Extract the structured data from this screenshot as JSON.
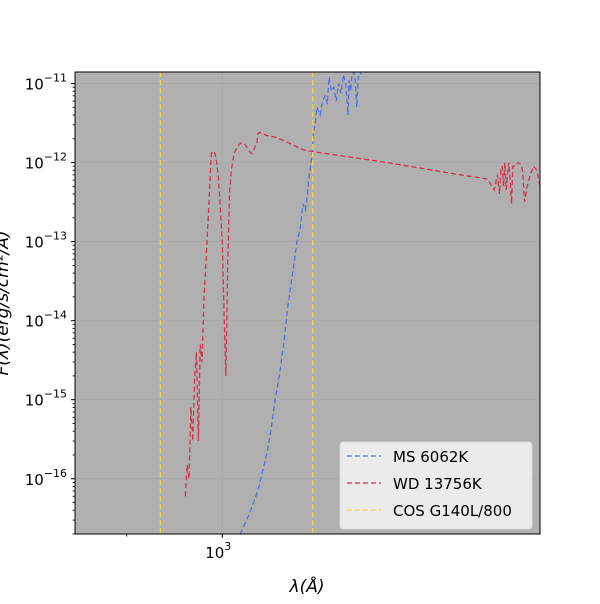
{
  "chart_data": {
    "type": "line",
    "title": "",
    "xlabel": "λ(Å)",
    "ylabel": "F(λ)(erg/s/cm²/Å)",
    "xscale": "log",
    "yscale": "log",
    "xlim": [
      850,
      1420
    ],
    "ylim": [
      2e-17,
      1.4e-11
    ],
    "grid": true,
    "background_color": "#b0b0b0",
    "legend_position": "lower-right",
    "x_ticks": [
      {
        "value": 1000,
        "base": "10",
        "exp": "3"
      }
    ],
    "y_ticks": [
      {
        "value": 1e-16,
        "base": "10",
        "exp": "−16"
      },
      {
        "value": 1e-15,
        "base": "10",
        "exp": "−15"
      },
      {
        "value": 1e-14,
        "base": "10",
        "exp": "−14"
      },
      {
        "value": 1e-13,
        "base": "10",
        "exp": "−13"
      },
      {
        "value": 1e-12,
        "base": "10",
        "exp": "−12"
      },
      {
        "value": 1e-11,
        "base": "10",
        "exp": "−11"
      }
    ],
    "series": [
      {
        "name": "MS 6062K",
        "color": "#5470de",
        "style": "dashed",
        "x": [
          1020,
          1030,
          1040,
          1050,
          1055,
          1060,
          1065,
          1070,
          1075,
          1078,
          1082,
          1086,
          1090,
          1093,
          1096,
          1098,
          1100,
          1104,
          1106,
          1108,
          1110,
          1114,
          1117,
          1120,
          1123,
          1125,
          1128,
          1131,
          1134,
          1137,
          1140,
          1143,
          1146,
          1149,
          1150,
          1152,
          1154,
          1156,
          1158,
          1160,
          1162,
          1164,
          1166
        ],
        "y": [
          2e-17,
          3.5e-17,
          7e-17,
          2e-16,
          4e-16,
          1e-15,
          2e-15,
          5e-15,
          1.5e-14,
          2.5e-14,
          5e-14,
          1e-13,
          1.5e-13,
          3e-13,
          2.5e-13,
          3.5e-13,
          6e-13,
          1.2e-12,
          2.5e-12,
          3e-12,
          5e-12,
          4e-12,
          6e-12,
          7e-12,
          5.5e-12,
          1.2e-11,
          8e-12,
          9e-12,
          6e-12,
          1e-11,
          7.5e-12,
          1.3e-11,
          1e-11,
          4e-12,
          1.1e-11,
          8e-12,
          1.3e-11,
          1.4e-11,
          1.1e-11,
          5e-12,
          1.2e-11,
          1.4e-11,
          1.3e-11
        ]
      },
      {
        "name": "WD 13756K",
        "color": "#d62f4b",
        "style": "dashed",
        "x": [
          960,
          962,
          964,
          966,
          968,
          970,
          972,
          974,
          976,
          978,
          980,
          982,
          985,
          988,
          990,
          992,
          994,
          996,
          998,
          1000,
          1002,
          1004,
          1006,
          1008,
          1010,
          1013,
          1016,
          1019,
          1022,
          1025,
          1027,
          1030,
          1033,
          1036,
          1039,
          1040,
          1042,
          1045,
          1050,
          1060,
          1070,
          1080,
          1090,
          1100,
          1200,
          1300,
          1340,
          1350,
          1355,
          1358,
          1360,
          1362,
          1364,
          1366,
          1368,
          1370,
          1372,
          1374,
          1376,
          1378,
          1382,
          1386,
          1390,
          1393,
          1396,
          1400,
          1405,
          1410,
          1415,
          1420
        ],
        "y": [
          6e-17,
          1.5e-16,
          1e-16,
          8e-16,
          3e-16,
          2e-15,
          4e-15,
          3e-16,
          5e-15,
          3e-15,
          2e-14,
          5e-14,
          2.5e-13,
          1.3e-12,
          1.4e-12,
          1.3e-12,
          1e-12,
          6e-13,
          2.5e-13,
          1e-13,
          1.2e-14,
          2e-15,
          5e-14,
          4e-13,
          8e-13,
          1.3e-12,
          1.5e-12,
          1.7e-12,
          1.8e-12,
          1.7e-12,
          1.6e-12,
          1.4e-12,
          1.3e-12,
          1.5e-12,
          1.8e-12,
          2.3e-12,
          2.4e-12,
          2.35e-12,
          2.2e-12,
          2.1e-12,
          1.9e-12,
          1.7e-12,
          1.5e-12,
          1.4e-12,
          1e-12,
          7e-13,
          6.2e-13,
          4.5e-13,
          7e-13,
          4e-13,
          8e-13,
          9e-13,
          5e-13,
          1e-12,
          4.5e-13,
          7e-13,
          1e-12,
          6e-13,
          3e-13,
          9e-13,
          9e-13,
          1e-12,
          9.5e-13,
          8e-13,
          3.2e-13,
          5e-13,
          7e-13,
          9e-13,
          8e-13,
          5e-13
        ]
      },
      {
        "name": "COS G140L/800",
        "color": "#f5d742",
        "style": "dashed",
        "vlines": [
          934,
          1105
        ]
      }
    ]
  }
}
